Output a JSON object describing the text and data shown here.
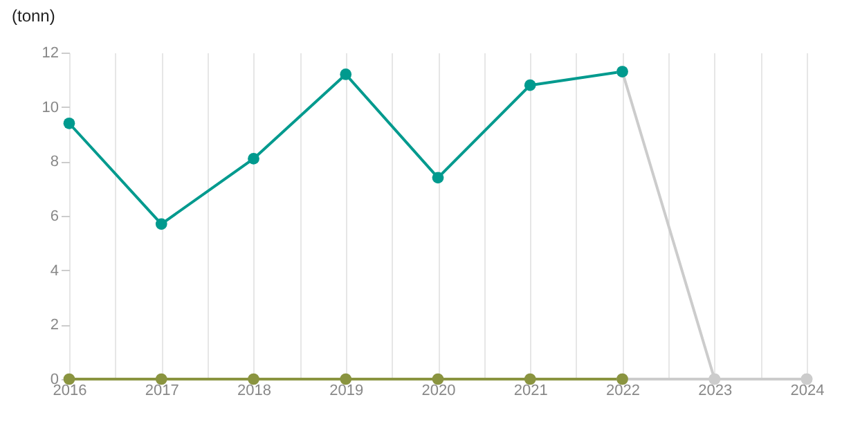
{
  "chart_data": {
    "type": "line",
    "ylabel": "(tonn)",
    "x": [
      2016,
      2017,
      2018,
      2019,
      2020,
      2021,
      2022,
      2023,
      2024
    ],
    "xlim": [
      2016,
      2024
    ],
    "xticks": [
      2016,
      {
        "value": 2016.5,
        "label": null
      },
      2017,
      {
        "value": 2017.5,
        "label": null
      },
      2018,
      {
        "value": 2018.5,
        "label": null
      },
      2019,
      {
        "value": 2019.5,
        "label": null
      },
      2020,
      {
        "value": 2020.5,
        "label": null
      },
      2021,
      {
        "value": 2021.5,
        "label": null
      },
      2022,
      {
        "value": 2022.5,
        "label": null
      },
      2023,
      {
        "value": 2023.5,
        "label": null
      },
      2024
    ],
    "ylim": [
      0,
      12
    ],
    "yticks": [
      0,
      2,
      4,
      6,
      8,
      10,
      12
    ],
    "grid": "x",
    "marker": "circle",
    "line_style": "solid",
    "series": [
      {
        "color": "#cccccc",
        "values": [
          null,
          null,
          null,
          null,
          null,
          null,
          0,
          0,
          0
        ]
      },
      {
        "color": "#cccccc",
        "values": [
          null,
          null,
          null,
          null,
          null,
          null,
          11.3,
          0,
          0
        ]
      },
      {
        "color": "#8a9440",
        "values": [
          0,
          0,
          0,
          0,
          0,
          0,
          0,
          null,
          null
        ]
      },
      {
        "color": "#009a8e",
        "values": [
          9.4,
          5.7,
          8.1,
          11.2,
          7.4,
          10.8,
          11.3,
          null,
          null
        ]
      }
    ]
  }
}
